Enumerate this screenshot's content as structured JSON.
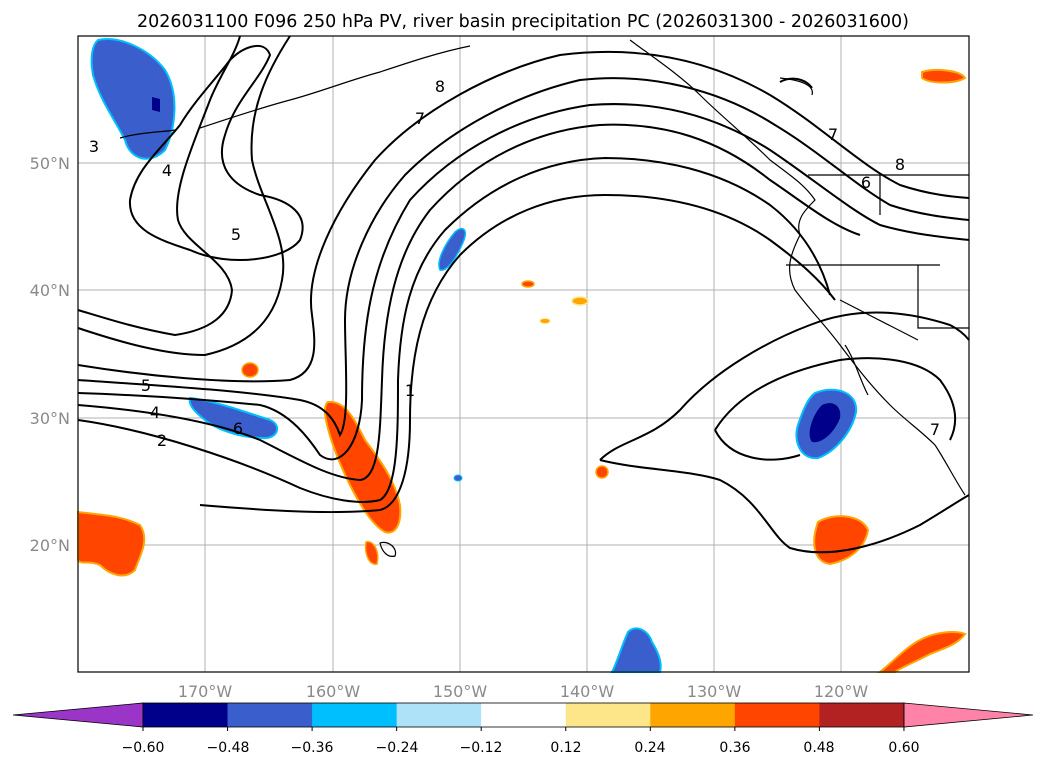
{
  "title": "2026031100 F096 250 hPa PV, river basin precipitation PC (2026031300 - 2026031600)",
  "map": {
    "lon_labels": [
      "170°W",
      "160°W",
      "150°W",
      "140°W",
      "130°W",
      "120°W"
    ],
    "lat_labels": [
      "50°N",
      "40°N",
      "30°N",
      "20°N"
    ],
    "pv_contour_labels": [
      "3",
      "4",
      "5",
      "8",
      "7",
      "5",
      "4",
      "2",
      "6",
      "1",
      "7",
      "8",
      "6",
      "7"
    ]
  },
  "colorbar": {
    "tick_labels": [
      "−0.60",
      "−0.48",
      "−0.36",
      "−0.24",
      "−0.12",
      "0.12",
      "0.24",
      "0.36",
      "0.48",
      "0.60"
    ],
    "colors": [
      "#9a35c8",
      "#00008b",
      "#3a5fcd",
      "#00bfff",
      "#aee2f8",
      "#ffffff",
      "#fde68a",
      "#ffa500",
      "#ff4500",
      "#b22222",
      "#ff83a8"
    ]
  }
}
